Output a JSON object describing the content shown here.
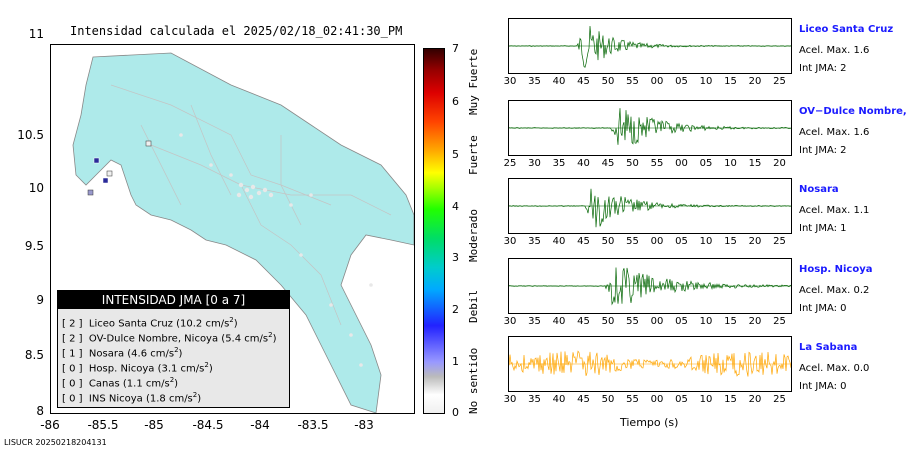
{
  "map": {
    "title": "Intensidad calculada el 2025/02/18_02:41:30_PM",
    "yticks": [
      "11",
      "10.5",
      "10",
      "9.5",
      "9",
      "8.5",
      "8"
    ],
    "xticks": [
      "-86",
      "-85.5",
      "-85",
      "-84.5",
      "-84",
      "-83.5",
      "-83"
    ]
  },
  "colorbar": {
    "ticks": [
      "7",
      "6",
      "5",
      "4",
      "3",
      "2",
      "1",
      "0"
    ],
    "labels": [
      "Muy Fuerte",
      "Fuerte",
      "Moderado",
      "Debil",
      "No sentido"
    ]
  },
  "legend": {
    "title": "INTENSIDAD JMA [0 a 7]",
    "rows": [
      {
        "jma": "[ 2 ]",
        "station": "Liceo Santa Cruz",
        "acc": "(10.2 cm/s",
        "sup": "2",
        "end": ")"
      },
      {
        "jma": "[ 2 ]",
        "station": "OV-Dulce Nombre, Nicoya",
        "acc": "(5.4 cm/s",
        "sup": "2",
        "end": ")"
      },
      {
        "jma": "[ 1 ]",
        "station": "Nosara",
        "acc": "(4.6 cm/s",
        "sup": "2",
        "end": ")"
      },
      {
        "jma": "[ 0 ]",
        "station": "Hosp. Nicoya",
        "acc": "(3.1 cm/s",
        "sup": "2",
        "end": ")"
      },
      {
        "jma": "[ 0 ]",
        "station": "Canas",
        "acc": "(1.1 cm/s",
        "sup": "2",
        "end": ")"
      },
      {
        "jma": "[ 0 ]",
        "station": "INS Nicoya",
        "acc": "(1.8 cm/s",
        "sup": "2",
        "end": ")"
      }
    ]
  },
  "footer_id": "LISUCR 20250218204131",
  "traces": [
    {
      "name": "Liceo Santa Cruz",
      "acc": "Acel. Max. 1.6",
      "int": "Int JMA: 2",
      "color": "#006400",
      "ticks": [
        "30",
        "35",
        "40",
        "45",
        "50",
        "55",
        "00",
        "05",
        "10",
        "15",
        "20",
        "25"
      ]
    },
    {
      "name": "OV−Dulce Nombre, Nico",
      "acc": "Acel. Max. 1.6",
      "int": "Int JMA: 2",
      "color": "#006400",
      "ticks": [
        "25",
        "30",
        "35",
        "40",
        "45",
        "50",
        "55",
        "00",
        "05",
        "10",
        "15",
        "20"
      ]
    },
    {
      "name": "Nosara",
      "acc": "Acel. Max. 1.1",
      "int": "Int JMA: 1",
      "color": "#006400",
      "ticks": [
        "30",
        "35",
        "40",
        "45",
        "50",
        "55",
        "00",
        "05",
        "10",
        "15",
        "20",
        "25"
      ]
    },
    {
      "name": "Hosp. Nicoya",
      "acc": "Acel. Max. 0.2",
      "int": "Int JMA: 0",
      "color": "#006400",
      "ticks": [
        "30",
        "35",
        "40",
        "45",
        "50",
        "55",
        "00",
        "05",
        "10",
        "15",
        "20",
        "25"
      ]
    },
    {
      "name": "La Sabana",
      "acc": "Acel. Max. 0.0",
      "int": "Int JMA: 0",
      "color": "#ffa500",
      "ticks": [
        "30",
        "35",
        "40",
        "45",
        "50",
        "55",
        "00",
        "05",
        "10",
        "15",
        "20",
        "25"
      ]
    }
  ],
  "time_axis_label": "Tiempo (s)",
  "colors": {
    "land": "#aeeaea",
    "station_marker": "#2a2a99",
    "trace_green": "#006400",
    "trace_orange": "#ffa500",
    "station_name": "#1a1aff"
  }
}
